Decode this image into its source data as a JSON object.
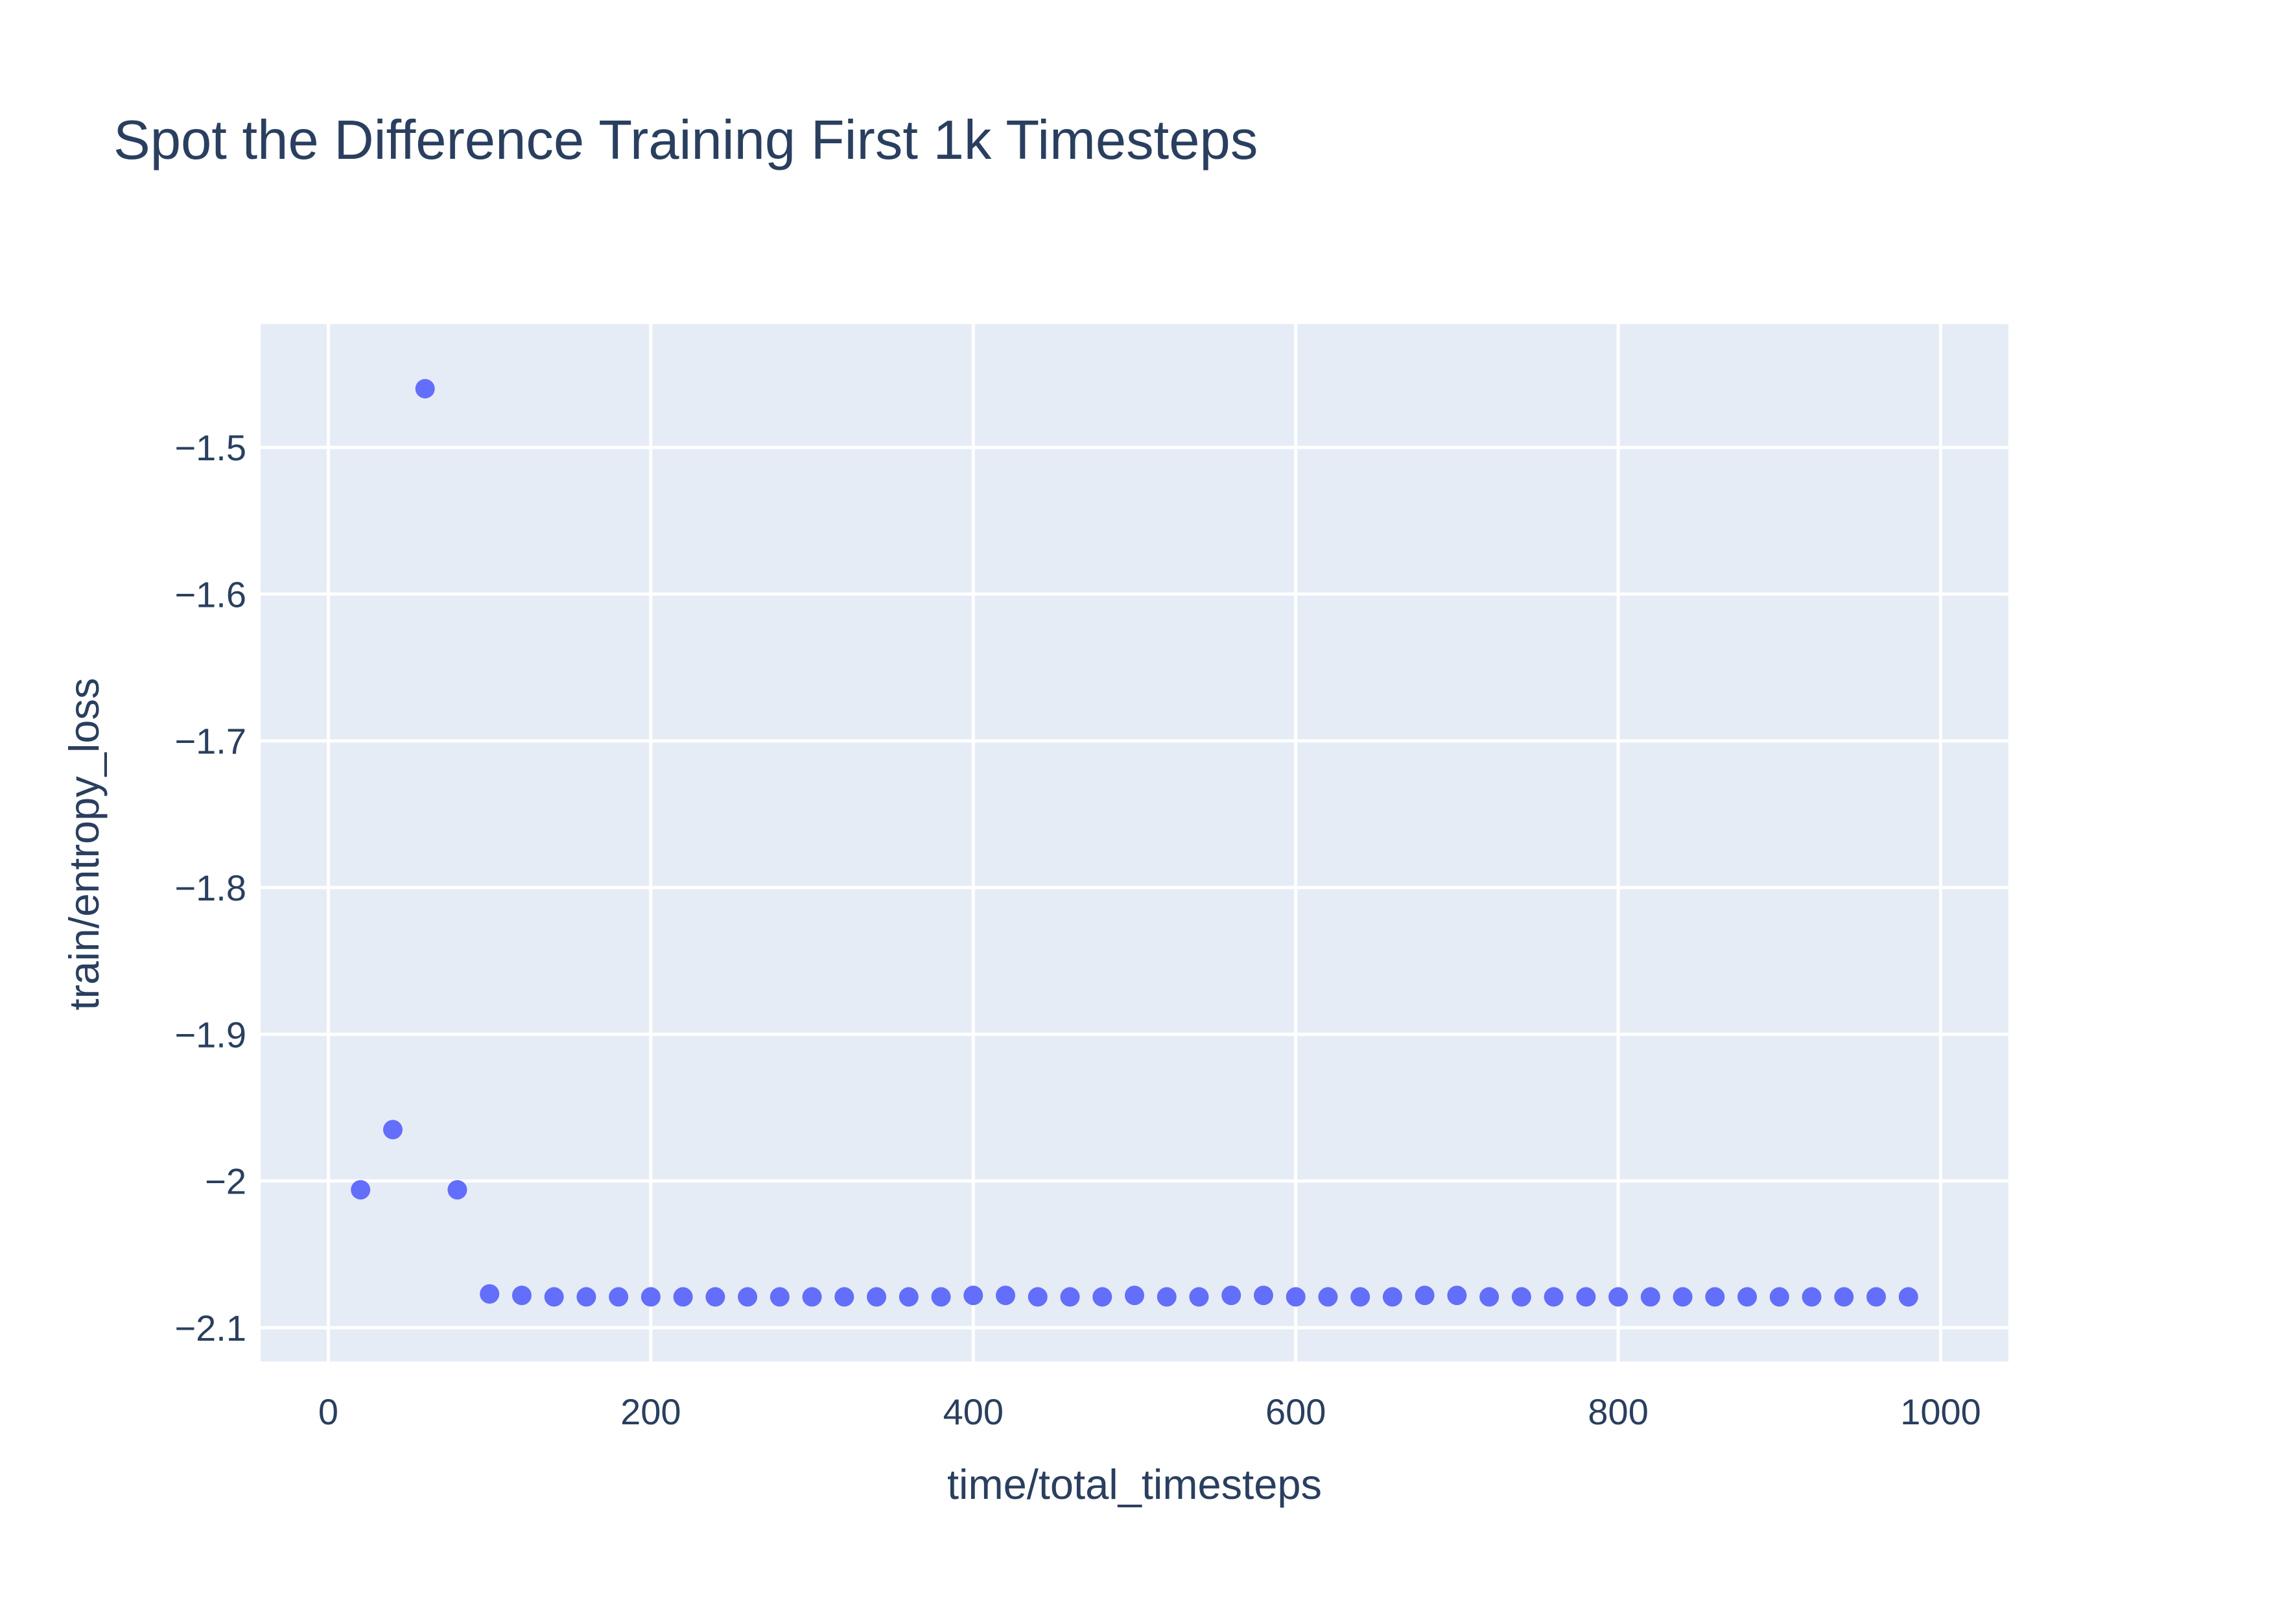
{
  "chart_data": {
    "type": "scatter",
    "title": "Spot the Difference Training First 1k Timesteps",
    "xlabel": "time/total_timesteps",
    "ylabel": "train/entropy_loss",
    "xlim": [
      -42,
      1042
    ],
    "ylim": [
      -2.123,
      -1.416
    ],
    "x_ticks": [
      0,
      200,
      400,
      600,
      800,
      1000
    ],
    "x_tick_labels": [
      "0",
      "200",
      "400",
      "600",
      "800",
      "1000"
    ],
    "y_ticks": [
      -1.5,
      -1.6,
      -1.7,
      -1.8,
      -1.9,
      -2,
      -2.1
    ],
    "y_tick_labels": [
      "−1.5",
      "−1.6",
      "−1.7",
      "−1.8",
      "−1.9",
      "−2",
      "−2.1"
    ],
    "grid": true,
    "colors": {
      "marker": "#636efa",
      "plot_bg": "#e5ecf6",
      "grid": "#ffffff",
      "text": "#2a3f5f"
    },
    "series": [
      {
        "x": [
          20,
          40,
          60,
          80,
          100,
          120,
          140,
          160,
          180,
          200,
          220,
          240,
          260,
          280,
          300,
          320,
          340,
          360,
          380,
          400,
          420,
          440,
          460,
          480,
          500,
          520,
          540,
          560,
          580,
          600,
          620,
          640,
          660,
          680,
          700,
          720,
          740,
          760,
          780,
          800,
          820,
          840,
          860,
          880,
          900,
          920,
          940,
          960,
          980
        ],
        "values": [
          -2.006,
          -1.965,
          -1.46,
          -2.006,
          -2.077,
          -2.078,
          -2.079,
          -2.079,
          -2.079,
          -2.079,
          -2.079,
          -2.079,
          -2.079,
          -2.079,
          -2.079,
          -2.079,
          -2.079,
          -2.079,
          -2.079,
          -2.078,
          -2.078,
          -2.079,
          -2.079,
          -2.079,
          -2.078,
          -2.079,
          -2.079,
          -2.078,
          -2.078,
          -2.079,
          -2.079,
          -2.079,
          -2.079,
          -2.078,
          -2.078,
          -2.079,
          -2.079,
          -2.079,
          -2.079,
          -2.079,
          -2.079,
          -2.079,
          -2.079,
          -2.079,
          -2.079,
          -2.079,
          -2.079,
          -2.079,
          -2.079
        ]
      }
    ]
  }
}
